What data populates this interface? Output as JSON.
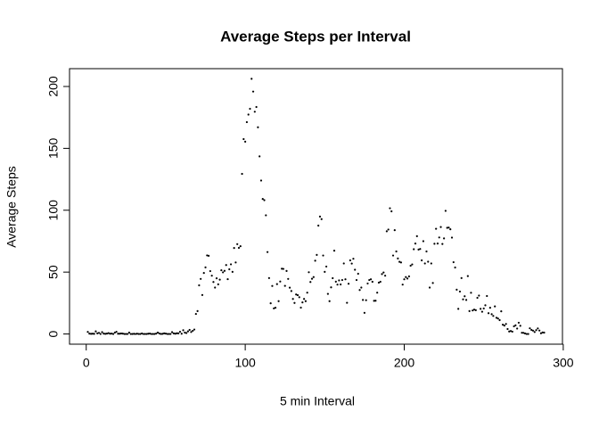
{
  "chart_data": {
    "type": "scatter",
    "title": "Average Steps per Interval",
    "x_label": "5 min Interval",
    "y_label": "Average Steps",
    "color": "#000000",
    "x": [
      1,
      2,
      3,
      4,
      5,
      6,
      7,
      8,
      9,
      10,
      11,
      12,
      13,
      14,
      15,
      16,
      17,
      18,
      19,
      20,
      21,
      22,
      23,
      24,
      25,
      26,
      27,
      28,
      29,
      30,
      31,
      32,
      33,
      34,
      35,
      36,
      37,
      38,
      39,
      40,
      41,
      42,
      43,
      44,
      45,
      46,
      47,
      48,
      49,
      50,
      51,
      52,
      53,
      54,
      55,
      56,
      57,
      58,
      59,
      60,
      61,
      62,
      63,
      64,
      65,
      66,
      67,
      68,
      69,
      70,
      71,
      72,
      73,
      74,
      75,
      76,
      77,
      78,
      79,
      80,
      81,
      82,
      83,
      84,
      85,
      86,
      87,
      88,
      89,
      90,
      91,
      92,
      93,
      94,
      95,
      96,
      97,
      98,
      99,
      100,
      101,
      102,
      103,
      104,
      105,
      106,
      107,
      108,
      109,
      110,
      111,
      112,
      113,
      114,
      115,
      116,
      117,
      118,
      119,
      120,
      121,
      122,
      123,
      124,
      125,
      126,
      127,
      128,
      129,
      130,
      131,
      132,
      133,
      134,
      135,
      136,
      137,
      138,
      139,
      140,
      141,
      142,
      143,
      144,
      145,
      146,
      147,
      148,
      149,
      150,
      151,
      152,
      153,
      154,
      155,
      156,
      157,
      158,
      159,
      160,
      161,
      162,
      163,
      164,
      165,
      166,
      167,
      168,
      169,
      170,
      171,
      172,
      173,
      174,
      175,
      176,
      177,
      178,
      179,
      180,
      181,
      182,
      183,
      184,
      185,
      186,
      187,
      188,
      189,
      190,
      191,
      192,
      193,
      194,
      195,
      196,
      197,
      198,
      199,
      200,
      201,
      202,
      203,
      204,
      205,
      206,
      207,
      208,
      209,
      210,
      211,
      212,
      213,
      214,
      215,
      216,
      217,
      218,
      219,
      220,
      221,
      222,
      223,
      224,
      225,
      226,
      227,
      228,
      229,
      230,
      231,
      232,
      233,
      234,
      235,
      236,
      237,
      238,
      239,
      240,
      241,
      242,
      243,
      244,
      245,
      246,
      247,
      248,
      249,
      250,
      251,
      252,
      253,
      254,
      255,
      256,
      257,
      258,
      259,
      260,
      261,
      262,
      263,
      264,
      265,
      266,
      267,
      268,
      269,
      270,
      271,
      272,
      273,
      274,
      275,
      276,
      277,
      278,
      279,
      280,
      281,
      282,
      283,
      284,
      285,
      286,
      287,
      288
    ],
    "values": [
      1.7,
      0.3,
      0.1,
      0.2,
      0.1,
      2.1,
      0.5,
      0.9,
      0,
      1.5,
      0.3,
      0.1,
      0.3,
      0.7,
      0.2,
      0.3,
      0,
      1.1,
      1.8,
      0.2,
      0.2,
      0.4,
      0.3,
      0,
      0,
      0,
      1.1,
      0,
      0,
      0.1,
      0,
      0.2,
      0,
      0,
      0.4,
      0,
      0,
      0,
      0.2,
      0.3,
      0,
      0,
      0,
      0.3,
      1.1,
      0.4,
      0,
      0.1,
      0.5,
      0.3,
      0,
      0,
      0,
      1.5,
      0.5,
      0.2,
      0.6,
      0.5,
      1.8,
      0.2,
      3.0,
      1.1,
      0.8,
      2.1,
      3.3,
      1.6,
      2.6,
      3.6,
      16.2,
      18.5,
      39.3,
      44.5,
      31.5,
      49.3,
      53.8,
      63.5,
      63.2,
      50.8,
      47.1,
      42.0,
      37.5,
      45.0,
      40.1,
      43.9,
      51.5,
      49.8,
      51.0,
      55.7,
      44.3,
      52.3,
      56.3,
      50.2,
      69.5,
      57.8,
      72.6,
      69.6,
      70.9,
      129.4,
      157.5,
      155.4,
      171.2,
      177.3,
      182.0,
      206.2,
      195.9,
      179.6,
      183.4,
      167.0,
      143.5,
      124.0,
      109.1,
      108.1,
      95.9,
      66.2,
      45.2,
      24.8,
      38.8,
      20.7,
      21.2,
      40.3,
      26.5,
      42.4,
      52.7,
      52.6,
      38.9,
      50.9,
      44.5,
      37.4,
      34.7,
      28.3,
      25.1,
      31.9,
      31.4,
      29.7,
      21.3,
      25.5,
      28.3,
      26.5,
      33.4,
      49.9,
      42.0,
      44.6,
      46.0,
      59.2,
      63.9,
      87.6,
      94.9,
      92.8,
      63.4,
      50.2,
      54.5,
      32.4,
      26.5,
      37.7,
      45.1,
      67.3,
      42.3,
      39.9,
      43.3,
      40.0,
      43.6,
      57.0,
      44.2,
      25.2,
      40.6,
      59.5,
      56.9,
      60.8,
      51.9,
      43.6,
      48.7,
      35.5,
      37.5,
      27.5,
      17.1,
      27.3,
      40.8,
      43.6,
      44.2,
      42.2,
      26.8,
      26.9,
      33.4,
      41.5,
      42.2,
      48.4,
      49.7,
      47.1,
      83.0,
      84.4,
      101.6,
      99.1,
      63.4,
      83.9,
      66.7,
      61.0,
      58.3,
      57.8,
      39.9,
      44.2,
      46.0,
      44.8,
      46.5,
      55.2,
      56.2,
      68.5,
      73.1,
      79.0,
      68.2,
      68.7,
      59.5,
      75.0,
      57.0,
      66.7,
      58.4,
      37.5,
      57.0,
      41.2,
      72.9,
      85.0,
      73.1,
      78.0,
      86.4,
      72.7,
      77.2,
      99.5,
      85.8,
      86.0,
      84.6,
      77.9,
      58.0,
      53.7,
      35.8,
      20.3,
      34.3,
      45.2,
      28.0,
      30.5,
      27.5,
      46.8,
      18.5,
      33.3,
      19.0,
      19.7,
      19.2,
      29.2,
      31.0,
      20.3,
      18.0,
      20.6,
      23.2,
      30.7,
      16.8,
      21.2,
      16.0,
      14.6,
      22.3,
      13.1,
      12.5,
      11.2,
      18.3,
      7.5,
      6.8,
      8.1,
      4.0,
      2.0,
      2.4,
      1.9,
      6.2,
      7.0,
      4.4,
      9.1,
      6.6,
      1.0,
      0.9,
      0.4,
      0,
      0,
      4.6,
      3.3,
      2.7,
      1.6,
      3.1,
      4.5,
      2.8,
      0.6,
      1.2,
      1.1
    ],
    "xlim": [
      -10.5,
      299.5
    ],
    "ylim": [
      -8.25,
      214.4
    ],
    "xticks": [
      0,
      100,
      200,
      300
    ],
    "yticks": [
      0,
      50,
      100,
      150,
      200
    ]
  }
}
